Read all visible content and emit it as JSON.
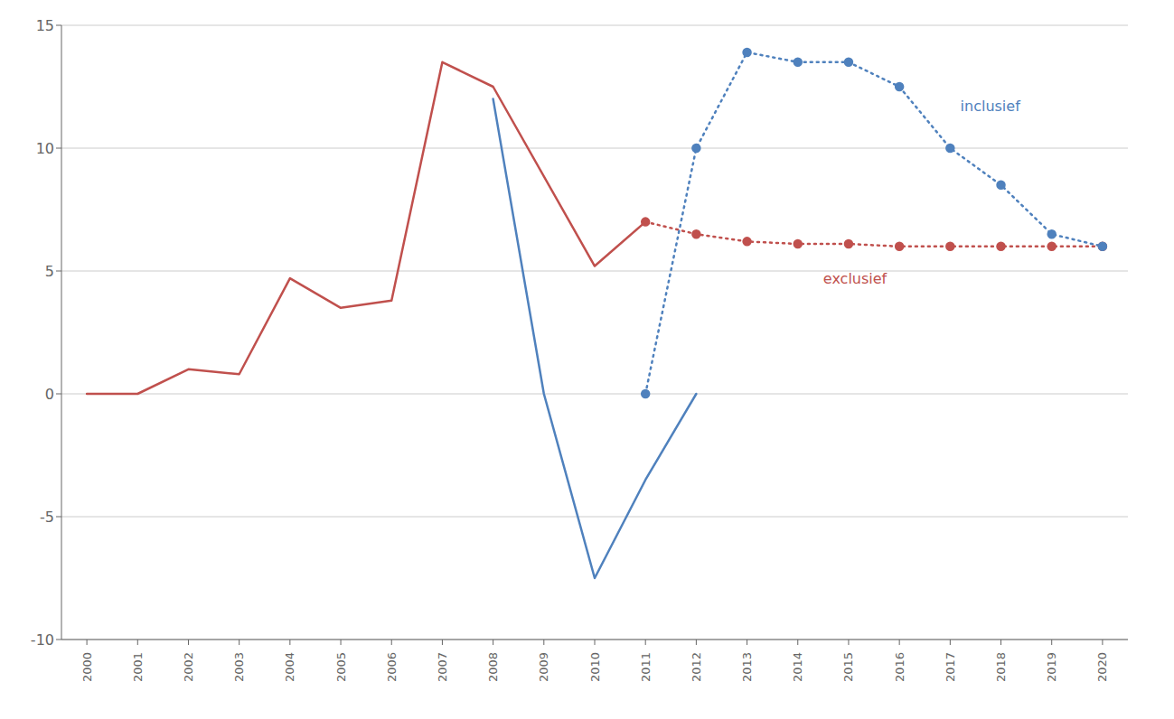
{
  "chart_data": {
    "type": "line",
    "xlim": [
      1999.5,
      2020.5
    ],
    "ylim": [
      -10,
      15
    ],
    "xticks": [
      2000,
      2001,
      2002,
      2003,
      2004,
      2005,
      2006,
      2007,
      2008,
      2009,
      2010,
      2011,
      2012,
      2013,
      2014,
      2015,
      2016,
      2017,
      2018,
      2019,
      2020
    ],
    "yticks": [
      -10,
      -5,
      0,
      5,
      10,
      15
    ],
    "grid": "y",
    "series": [
      {
        "color": "#c0504d",
        "line_style": "solid",
        "marker": "none",
        "x": [
          2000,
          2001,
          2002,
          2003,
          2004,
          2005,
          2006,
          2007,
          2008,
          2010,
          2011
        ],
        "values": [
          0,
          0,
          1.0,
          0.8,
          4.7,
          3.5,
          3.8,
          13.5,
          12.5,
          5.2,
          7.0
        ]
      },
      {
        "color": "#c0504d",
        "line_style": "dotted",
        "marker": "circle",
        "x": [
          2011,
          2012,
          2013,
          2014,
          2015,
          2016,
          2017,
          2018,
          2019,
          2020
        ],
        "values": [
          7.0,
          6.5,
          6.2,
          6.1,
          6.1,
          6.0,
          6.0,
          6.0,
          6.0,
          6.0
        ]
      },
      {
        "color": "#4f81bd",
        "line_style": "solid",
        "marker": "none",
        "x": [
          2008,
          2009,
          2010,
          2011,
          2012
        ],
        "values": [
          12.0,
          0.0,
          -7.5,
          -3.5,
          0.0
        ]
      },
      {
        "color": "#4f81bd",
        "line_style": "dotted",
        "marker": "circle",
        "x": [
          2011,
          2012,
          2013,
          2014,
          2015,
          2016,
          2017,
          2018,
          2019,
          2020
        ],
        "values": [
          0.0,
          10.0,
          13.9,
          13.5,
          13.5,
          12.5,
          10.0,
          8.5,
          6.5,
          6.0
        ]
      }
    ],
    "annotations": [
      {
        "text": "inclusief",
        "x": 2017.2,
        "y": 11.5,
        "color": "#4f81bd"
      },
      {
        "text": "exclusief",
        "x": 2014.5,
        "y": 4.5,
        "color": "#c0504d"
      }
    ]
  }
}
